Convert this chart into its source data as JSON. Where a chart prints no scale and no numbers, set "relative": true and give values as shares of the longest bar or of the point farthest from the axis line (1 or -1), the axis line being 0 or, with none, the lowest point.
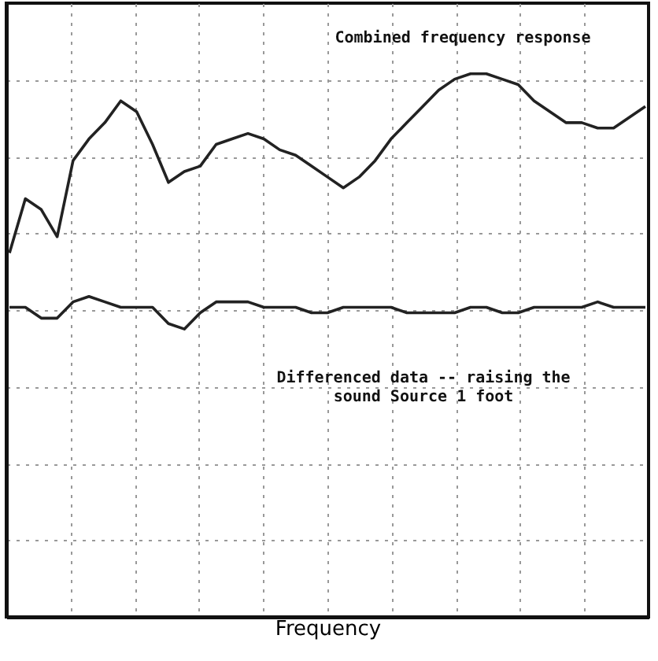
{
  "chart_data": {
    "type": "line",
    "relative": true,
    "xlabel": "Frequency",
    "grid": true,
    "line_style": "solid",
    "categories": [
      null,
      null,
      null,
      null,
      null,
      null,
      null,
      null,
      null,
      null,
      null,
      null,
      null,
      null,
      null,
      null,
      null,
      null,
      null,
      null,
      null,
      null,
      null,
      null,
      null,
      null,
      null,
      null,
      null,
      null,
      null,
      null,
      null,
      null,
      null,
      null,
      null,
      null,
      null,
      null,
      null
    ],
    "series": [
      {
        "color": "#222222",
        "values": [
          0.67,
          0.77,
          0.75,
          0.7,
          0.84,
          0.88,
          0.91,
          0.95,
          0.93,
          0.87,
          0.8,
          0.82,
          0.83,
          0.87,
          0.88,
          0.89,
          0.88,
          0.86,
          0.85,
          0.83,
          0.81,
          0.79,
          0.81,
          0.84,
          0.88,
          0.91,
          0.94,
          0.97,
          0.99,
          1,
          1,
          0.99,
          0.98,
          0.95,
          0.93,
          0.91,
          0.91,
          0.9,
          0.9,
          0.92,
          0.94
        ]
      },
      {
        "color": "#222222",
        "values": [
          0.57,
          0.57,
          0.55,
          0.55,
          0.58,
          0.59,
          0.58,
          0.57,
          0.57,
          0.57,
          0.54,
          0.53,
          0.56,
          0.58,
          0.58,
          0.58,
          0.57,
          0.57,
          0.57,
          0.56,
          0.56,
          0.57,
          0.57,
          0.57,
          0.57,
          0.56,
          0.56,
          0.56,
          0.56,
          0.57,
          0.57,
          0.56,
          0.56,
          0.57,
          0.57,
          0.57,
          0.57,
          0.58,
          0.57,
          0.57,
          0.57
        ]
      }
    ],
    "annotations": [
      "Combined frequency response",
      "Differenced data -- raising the sound Source 1 foot"
    ]
  }
}
